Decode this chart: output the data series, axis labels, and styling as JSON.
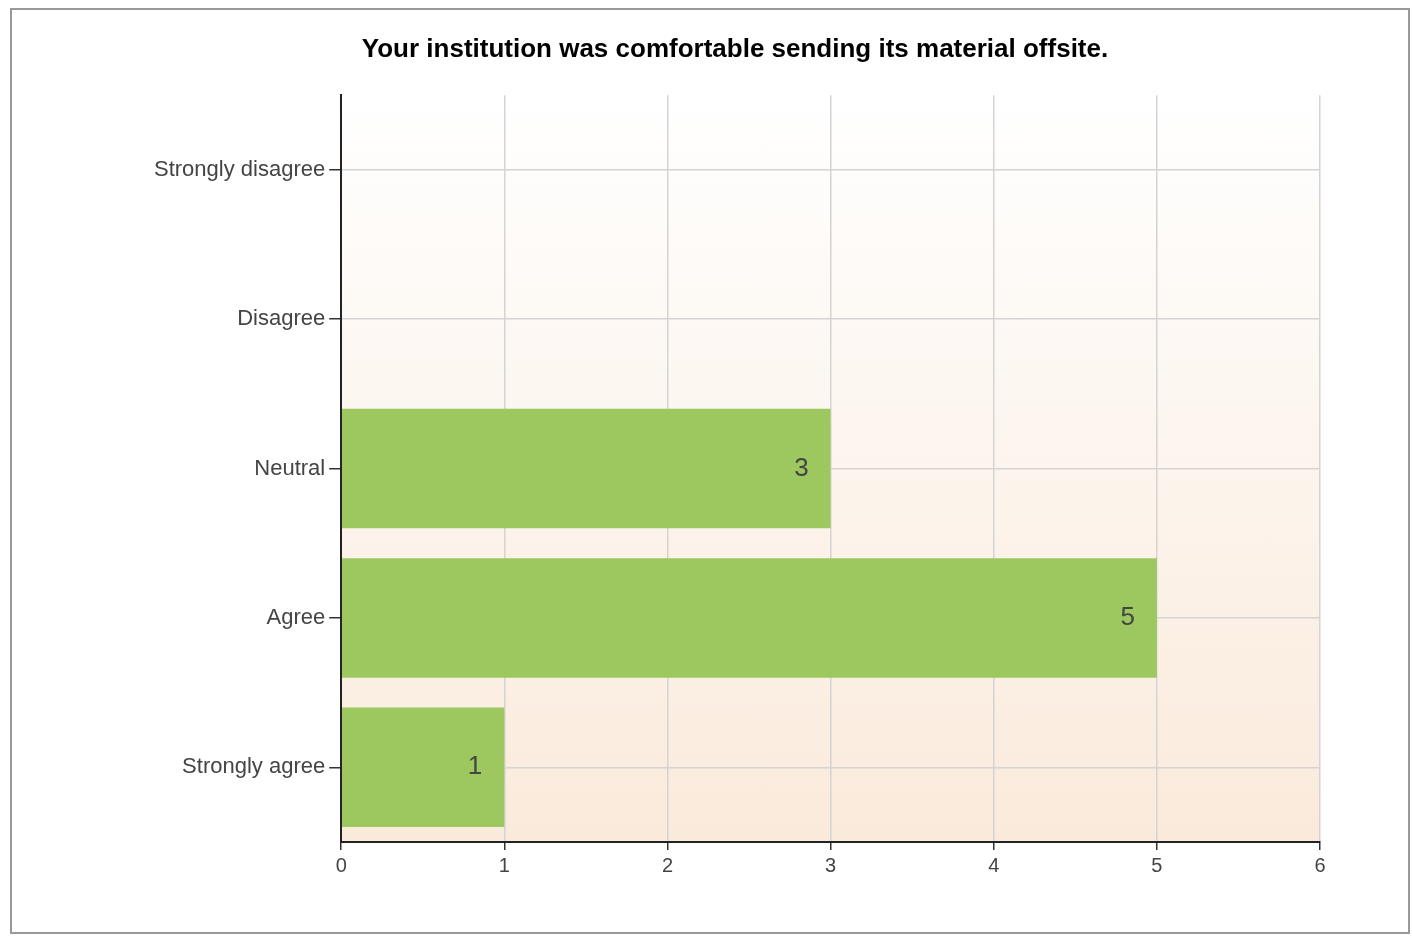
{
  "chart_data": {
    "type": "bar",
    "orientation": "horizontal",
    "title": "Your institution was comfortable sending its material offsite.",
    "categories": [
      "Strongly disagree",
      "Disagree",
      "Neutral",
      "Agree",
      "Strongly agree"
    ],
    "values": [
      0,
      0,
      3,
      5,
      1
    ],
    "value_labels": [
      null,
      null,
      "3",
      "5",
      "1"
    ],
    "color": "#9dc85f",
    "xlim": [
      0,
      6
    ],
    "xticks": [
      0,
      1,
      2,
      3,
      4,
      5,
      6
    ],
    "grid": true,
    "legend": false
  }
}
